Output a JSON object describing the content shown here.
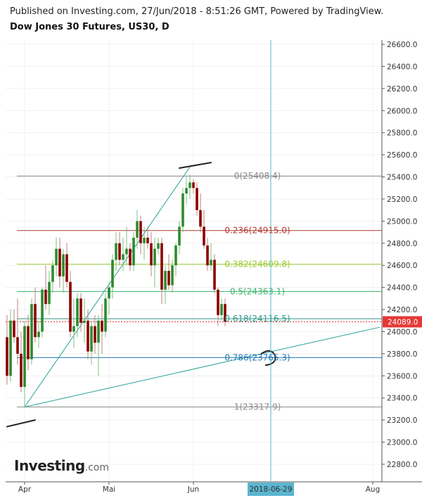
{
  "header": {
    "published": "Published on Investing.com, 27/Jun/2018 - 8:51:26 GMT, Powered by TradingView.",
    "title": "Dow Jones 30 Futures, US30, D"
  },
  "logo": {
    "main": "Investing",
    "suffix": ".com"
  },
  "chart_data": {
    "type": "candlestick",
    "title": "Dow Jones 30 Futures, US30, D",
    "ylim": [
      22600,
      26700
    ],
    "y_ticks": [
      22800,
      23000,
      23200,
      23400,
      23600,
      23800,
      24000,
      24200,
      24400,
      24600,
      24800,
      25000,
      25200,
      25400,
      25600,
      25800,
      26000,
      26200,
      26400,
      26600
    ],
    "y_tick_labels": [
      "22800.0",
      "23000.0",
      "23200.0",
      "23400.0",
      "23600.0",
      "23800.0",
      "24000.0",
      "24200.0",
      "24400.0",
      "24600.0",
      "24800.0",
      "25000.0",
      "25200.0",
      "25400.0",
      "25600.0",
      "25800.0",
      "26000.0",
      "26200.0",
      "26400.0",
      "26600.0"
    ],
    "x_labels": [
      {
        "label": "Apr",
        "index": 5
      },
      {
        "label": "Mai",
        "index": 29
      },
      {
        "label": "Jun",
        "index": 53
      },
      {
        "label": "Aug",
        "index": 104
      }
    ],
    "cursor_date_label": "2018-06-29",
    "cursor_index": 75,
    "last_price": "24089.0",
    "last_price_value": 24089,
    "colors": {
      "up": "#2e8b2e",
      "down": "#8b0000",
      "wick": "#777777",
      "last_price": "#e53935",
      "cursor": "#5bb5d0"
    },
    "candles": [
      {
        "o": 23950,
        "h": 24150,
        "l": 23520,
        "c": 23600
      },
      {
        "o": 23600,
        "h": 24200,
        "l": 23550,
        "c": 24100
      },
      {
        "o": 24100,
        "h": 24200,
        "l": 23900,
        "c": 23950
      },
      {
        "o": 23950,
        "h": 24300,
        "l": 23700,
        "c": 23800
      },
      {
        "o": 23800,
        "h": 24000,
        "l": 23450,
        "c": 23500
      },
      {
        "o": 23500,
        "h": 24100,
        "l": 23320,
        "c": 24050
      },
      {
        "o": 24050,
        "h": 24150,
        "l": 23650,
        "c": 23750
      },
      {
        "o": 23750,
        "h": 24300,
        "l": 23700,
        "c": 24250
      },
      {
        "o": 24250,
        "h": 24400,
        "l": 23900,
        "c": 23950
      },
      {
        "o": 23950,
        "h": 24100,
        "l": 23850,
        "c": 24000
      },
      {
        "o": 24000,
        "h": 24400,
        "l": 23950,
        "c": 24380
      },
      {
        "o": 24380,
        "h": 24600,
        "l": 24200,
        "c": 24250
      },
      {
        "o": 24250,
        "h": 24550,
        "l": 24150,
        "c": 24450
      },
      {
        "o": 24450,
        "h": 24650,
        "l": 24350,
        "c": 24600
      },
      {
        "o": 24600,
        "h": 24850,
        "l": 24500,
        "c": 24750
      },
      {
        "o": 24750,
        "h": 24850,
        "l": 24400,
        "c": 24500
      },
      {
        "o": 24500,
        "h": 24750,
        "l": 24350,
        "c": 24700
      },
      {
        "o": 24700,
        "h": 24800,
        "l": 24400,
        "c": 24450
      },
      {
        "o": 24450,
        "h": 24550,
        "l": 23950,
        "c": 24000
      },
      {
        "o": 24000,
        "h": 24300,
        "l": 23850,
        "c": 24050
      },
      {
        "o": 24050,
        "h": 24350,
        "l": 23950,
        "c": 24300
      },
      {
        "o": 24300,
        "h": 24350,
        "l": 24000,
        "c": 24080
      },
      {
        "o": 24080,
        "h": 24300,
        "l": 23900,
        "c": 24100
      },
      {
        "o": 24100,
        "h": 24200,
        "l": 23750,
        "c": 23820
      },
      {
        "o": 23820,
        "h": 24100,
        "l": 23700,
        "c": 24050
      },
      {
        "o": 24050,
        "h": 24150,
        "l": 23800,
        "c": 23900
      },
      {
        "o": 23900,
        "h": 24150,
        "l": 23600,
        "c": 24100
      },
      {
        "o": 24100,
        "h": 24250,
        "l": 23800,
        "c": 24000
      },
      {
        "o": 24000,
        "h": 24350,
        "l": 23950,
        "c": 24300
      },
      {
        "o": 24300,
        "h": 24450,
        "l": 24150,
        "c": 24400
      },
      {
        "o": 24400,
        "h": 24700,
        "l": 24300,
        "c": 24650
      },
      {
        "o": 24650,
        "h": 24900,
        "l": 24550,
        "c": 24800
      },
      {
        "o": 24800,
        "h": 24900,
        "l": 24600,
        "c": 24650
      },
      {
        "o": 24650,
        "h": 24850,
        "l": 24550,
        "c": 24700
      },
      {
        "o": 24700,
        "h": 24950,
        "l": 24600,
        "c": 24750
      },
      {
        "o": 24750,
        "h": 24800,
        "l": 24550,
        "c": 24600
      },
      {
        "o": 24600,
        "h": 24900,
        "l": 24550,
        "c": 24850
      },
      {
        "o": 24850,
        "h": 25100,
        "l": 24750,
        "c": 25000
      },
      {
        "o": 25000,
        "h": 25050,
        "l": 24700,
        "c": 24800
      },
      {
        "o": 24800,
        "h": 24950,
        "l": 24650,
        "c": 24850
      },
      {
        "o": 24850,
        "h": 24950,
        "l": 24750,
        "c": 24800
      },
      {
        "o": 24800,
        "h": 24900,
        "l": 24500,
        "c": 24600
      },
      {
        "o": 24600,
        "h": 24850,
        "l": 24400,
        "c": 24750
      },
      {
        "o": 24750,
        "h": 24850,
        "l": 24700,
        "c": 24800
      },
      {
        "o": 24800,
        "h": 24850,
        "l": 24250,
        "c": 24380
      },
      {
        "o": 24380,
        "h": 24600,
        "l": 24250,
        "c": 24550
      },
      {
        "o": 24550,
        "h": 24700,
        "l": 24380,
        "c": 24420
      },
      {
        "o": 24420,
        "h": 24650,
        "l": 24350,
        "c": 24600
      },
      {
        "o": 24600,
        "h": 24800,
        "l": 24500,
        "c": 24780
      },
      {
        "o": 24780,
        "h": 25000,
        "l": 24700,
        "c": 24950
      },
      {
        "o": 24950,
        "h": 25300,
        "l": 24900,
        "c": 25250
      },
      {
        "o": 25250,
        "h": 25400,
        "l": 25150,
        "c": 25300
      },
      {
        "o": 25300,
        "h": 25420,
        "l": 25200,
        "c": 25350
      },
      {
        "o": 25350,
        "h": 25380,
        "l": 25250,
        "c": 25300
      },
      {
        "o": 25300,
        "h": 25350,
        "l": 25050,
        "c": 25100
      },
      {
        "o": 25100,
        "h": 25250,
        "l": 24900,
        "c": 24950
      },
      {
        "o": 24950,
        "h": 25100,
        "l": 24750,
        "c": 24780
      },
      {
        "o": 24780,
        "h": 24850,
        "l": 24550,
        "c": 24600
      },
      {
        "o": 24600,
        "h": 24800,
        "l": 24550,
        "c": 24650
      },
      {
        "o": 24650,
        "h": 24700,
        "l": 24350,
        "c": 24380
      },
      {
        "o": 24380,
        "h": 24400,
        "l": 24050,
        "c": 24150
      },
      {
        "o": 24150,
        "h": 24300,
        "l": 24100,
        "c": 24250
      },
      {
        "o": 24250,
        "h": 24300,
        "l": 24050,
        "c": 24089
      }
    ],
    "fib_levels": [
      {
        "text": "0(25408.4)",
        "value": 25408.4,
        "color": "#888888"
      },
      {
        "text": "0.236(24915.0)",
        "value": 24915.0,
        "color": "#b03a2e"
      },
      {
        "text": "0.382(24609.8)",
        "value": 24609.8,
        "color": "#9acd32"
      },
      {
        "text": "0.5(24363.1)",
        "value": 24363.1,
        "color": "#3cb371"
      },
      {
        "text": "0.618(24116.5)",
        "value": 24116.5,
        "color": "#2e9a8a"
      },
      {
        "text": "0.786(23765.3)",
        "value": 23765.3,
        "color": "#1f78b4"
      },
      {
        "text": "1(23317.9)",
        "value": 23317.9,
        "color": "#888888"
      }
    ],
    "trendlines": [
      {
        "x1": 5,
        "y1": 23317.9,
        "x2": 52,
        "y2": 25490,
        "color": "#2aa198"
      },
      {
        "x1": 5,
        "y1": 23317.9,
        "x2": 106,
        "y2": 24040,
        "color": "#2aa198"
      }
    ],
    "drawings": [
      {
        "x1": 0,
        "y1": 23140,
        "x2": 8,
        "y2": 23200,
        "color": "#222222"
      },
      {
        "x1": 49,
        "y1": 25480,
        "x2": 58,
        "y2": 25530,
        "color": "#222222"
      }
    ]
  }
}
